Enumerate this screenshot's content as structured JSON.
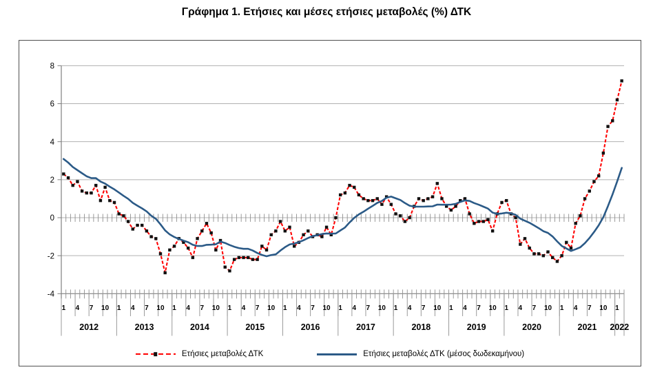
{
  "chart_data": {
    "type": "line",
    "title": "Γράφημα 1. Ετήσιες και μέσες ετήσιες μεταβολές (%) ΔΤΚ",
    "x_start": "2012-01",
    "x_end": "2022-02",
    "years": [
      "2012",
      "2013",
      "2014",
      "2015",
      "2016",
      "2017",
      "2018",
      "2019",
      "2020",
      "2021",
      "2022"
    ],
    "month_tick_labels": [
      "1",
      "4",
      "7",
      "10"
    ],
    "ylim": [
      -4,
      8
    ],
    "yticks": [
      8,
      6,
      4,
      2,
      0,
      -2,
      -4
    ],
    "grid": "horizontal",
    "legend_position": "bottom",
    "colors": {
      "annual": "#FF0000",
      "marker": "#111111",
      "average": "#2B5A87"
    },
    "series": [
      {
        "name": "Ετήσιες μεταβολές ΔΤΚ",
        "style": "dashed-red-black-square-markers",
        "values": [
          2.3,
          2.1,
          1.7,
          1.9,
          1.4,
          1.3,
          1.3,
          1.7,
          0.9,
          1.6,
          0.9,
          0.8,
          0.2,
          0.1,
          -0.2,
          -0.6,
          -0.4,
          -0.4,
          -0.7,
          -1.0,
          -1.1,
          -1.9,
          -2.9,
          -1.7,
          -1.5,
          -1.1,
          -1.3,
          -1.6,
          -2.1,
          -1.1,
          -0.7,
          -0.3,
          -0.8,
          -1.7,
          -1.2,
          -2.6,
          -2.8,
          -2.2,
          -2.1,
          -2.1,
          -2.1,
          -2.2,
          -2.2,
          -1.5,
          -1.7,
          -0.9,
          -0.7,
          -0.2,
          -0.7,
          -0.5,
          -1.5,
          -1.3,
          -0.9,
          -0.7,
          -1.0,
          -0.9,
          -1.0,
          -0.5,
          -0.9,
          0.0,
          1.2,
          1.3,
          1.7,
          1.6,
          1.2,
          1.0,
          0.9,
          0.9,
          1.0,
          0.7,
          1.1,
          0.7,
          0.2,
          0.1,
          -0.2,
          0.0,
          0.6,
          1.0,
          0.9,
          1.0,
          1.1,
          1.8,
          1.0,
          0.6,
          0.4,
          0.6,
          0.9,
          1.0,
          0.2,
          -0.3,
          -0.2,
          -0.2,
          -0.1,
          -0.7,
          0.2,
          0.8,
          0.9,
          0.2,
          0.0,
          -1.4,
          -1.1,
          -1.6,
          -1.9,
          -1.9,
          -2.0,
          -1.8,
          -2.1,
          -2.3,
          -2.0,
          -1.3,
          -1.6,
          -0.3,
          0.1,
          1.0,
          1.4,
          1.9,
          2.2,
          3.4,
          4.8,
          5.1,
          6.2,
          7.2
        ]
      },
      {
        "name": "Ετήσιες μεταβολές ΔΤΚ (μέσος δωδεκαμήνου)",
        "style": "solid-blue",
        "values": [
          3.09,
          2.9,
          2.67,
          2.5,
          2.34,
          2.18,
          2.08,
          2.08,
          1.9,
          1.79,
          1.63,
          1.49,
          1.32,
          1.15,
          0.99,
          0.78,
          0.63,
          0.49,
          0.33,
          0.1,
          -0.06,
          -0.35,
          -0.67,
          -0.88,
          -1.02,
          -1.12,
          -1.21,
          -1.29,
          -1.43,
          -1.49,
          -1.49,
          -1.43,
          -1.42,
          -1.4,
          -1.26,
          -1.33,
          -1.44,
          -1.53,
          -1.6,
          -1.64,
          -1.64,
          -1.73,
          -1.86,
          -1.96,
          -2.03,
          -1.97,
          -1.93,
          -1.73,
          -1.55,
          -1.41,
          -1.36,
          -1.29,
          -1.19,
          -1.07,
          -0.97,
          -0.92,
          -0.86,
          -0.83,
          -0.84,
          -0.83,
          -0.67,
          -0.52,
          -0.25,
          -0.01,
          0.17,
          0.31,
          0.47,
          0.62,
          0.78,
          0.88,
          1.05,
          1.11,
          1.02,
          0.93,
          0.77,
          0.63,
          0.58,
          0.58,
          0.58,
          0.59,
          0.6,
          0.69,
          0.68,
          0.68,
          0.69,
          0.73,
          0.83,
          0.91,
          0.88,
          0.77,
          0.68,
          0.58,
          0.48,
          0.27,
          0.2,
          0.22,
          0.26,
          0.23,
          0.15,
          -0.05,
          -0.16,
          -0.27,
          -0.41,
          -0.55,
          -0.71,
          -0.8,
          -0.99,
          -1.25,
          -1.49,
          -1.62,
          -1.75,
          -1.66,
          -1.56,
          -1.34,
          -1.07,
          -0.75,
          -0.4,
          0.03,
          0.61,
          1.23,
          1.91,
          2.62
        ]
      }
    ]
  }
}
